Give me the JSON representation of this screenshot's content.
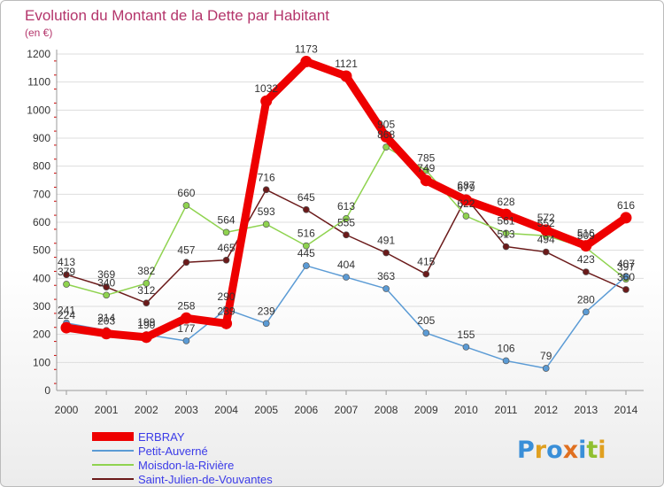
{
  "logo": {
    "text": "Proxiti",
    "colors": [
      "#3a8fd8",
      "#e0a020",
      "#3a8fd8",
      "#e07020",
      "#3a8fd8",
      "#90c030",
      "#e0a020"
    ]
  },
  "chart_data": {
    "type": "line",
    "title": "Evolution du Montant de la Dette par Habitant",
    "subtitle": "(en €)",
    "xlabel": "",
    "ylabel": "",
    "x": [
      "2000",
      "2001",
      "2002",
      "2003",
      "2004",
      "2005",
      "2006",
      "2007",
      "2008",
      "2009",
      "2010",
      "2011",
      "2012",
      "2013",
      "2014"
    ],
    "ylim": [
      0,
      1200
    ],
    "yticks": [
      0,
      100,
      200,
      300,
      400,
      500,
      600,
      700,
      800,
      900,
      1000,
      1100,
      1200
    ],
    "grid": "horizontal",
    "legend": "bottom-left",
    "series": [
      {
        "name": "Saint-Julien-de-Vouvantes",
        "color": "#6b1a1a",
        "values": [
          413,
          369,
          312,
          457,
          465,
          716,
          645,
          555,
          491,
          415,
          687,
          513,
          494,
          423,
          360
        ]
      },
      {
        "name": "Moisdon-la-Rivière",
        "color": "#8fd34f",
        "values": [
          379,
          340,
          382,
          660,
          564,
          593,
          516,
          613,
          868,
          785,
          622,
          561,
          552,
          509,
          397
        ]
      },
      {
        "name": "Petit-Auverné",
        "color": "#5b9bd5",
        "values": [
          241,
          214,
          199,
          177,
          290,
          239,
          445,
          404,
          363,
          205,
          155,
          106,
          79,
          280,
          407
        ]
      },
      {
        "name": "ERBRAY",
        "color": "#ee0000",
        "values": [
          224,
          203,
          190,
          258,
          239,
          1032,
          1173,
          1121,
          905,
          749,
          679,
          628,
          572,
          516,
          616
        ]
      }
    ],
    "legend_order": [
      "ERBRAY",
      "Petit-Auverné",
      "Moisdon-la-Rivière",
      "Saint-Julien-de-Vouvantes"
    ]
  }
}
